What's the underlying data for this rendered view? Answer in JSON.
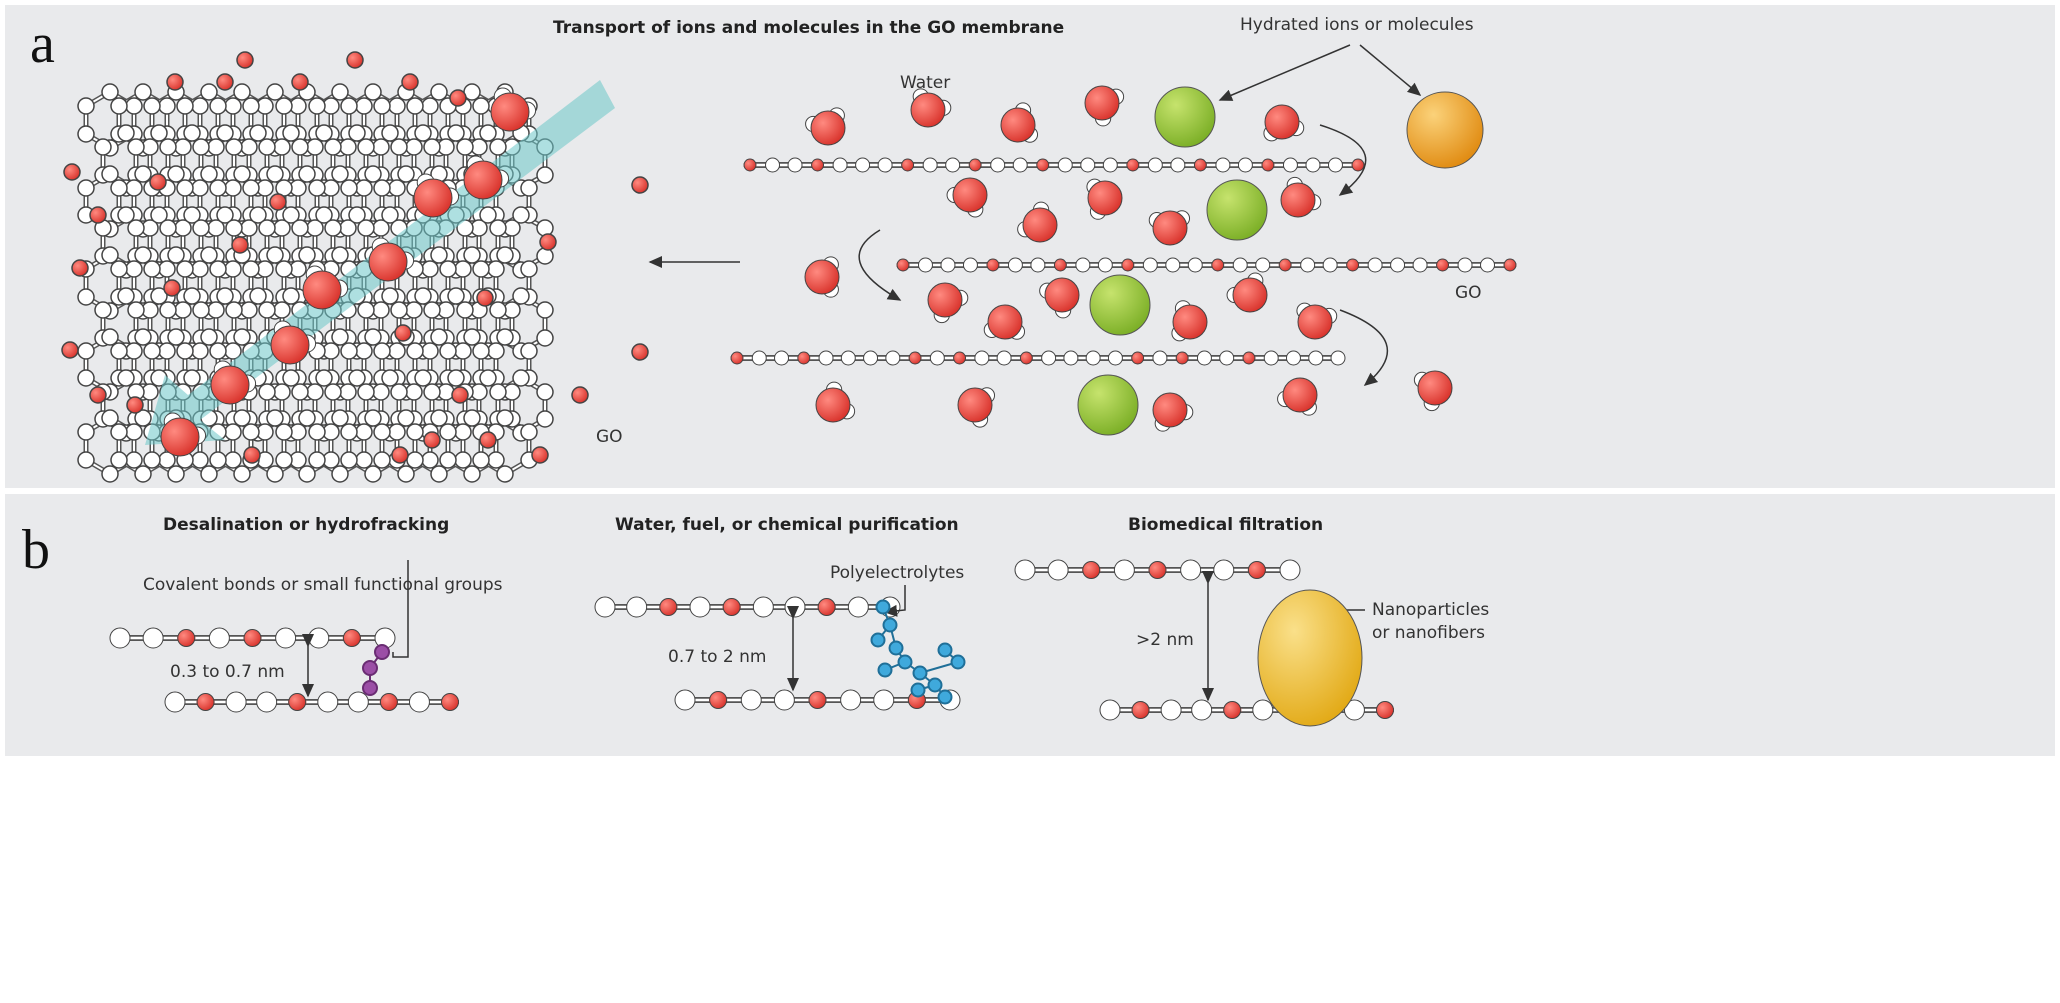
{
  "panel_a": {
    "letter": "a",
    "title": "Transport of ions and molecules in the GO membrane",
    "hydrated_label": "Hydrated ions or molecules",
    "water_label": "Water",
    "go_label_left": "GO",
    "go_label_right": "GO"
  },
  "panel_b": {
    "letter": "b",
    "desalination": {
      "title": "Desalination or hydrofracking",
      "annotation": "Covalent bonds or small functional groups",
      "spacing": "0.3 to 0.7 nm"
    },
    "purification": {
      "title": "Water, fuel, or chemical purification",
      "annotation": "Polyelectrolytes",
      "spacing": "0.7 to 2 nm"
    },
    "biomedical": {
      "title": "Biomedical filtration",
      "annotation_line1": "Nanoparticles",
      "annotation_line2": "or nanofibers",
      "spacing": ">2 nm"
    }
  },
  "colors": {
    "background_panel": "#e9eaec",
    "oxygen_red": "#e8473f",
    "carbon_white": "#ffffff",
    "ion_green": "#93c23a",
    "ion_orange": "#ee9a22",
    "nanoparticle_yellow": "#f0bf2a",
    "polyelectrolyte_blue": "#3fa9dc",
    "functional_purple": "#9b4ea6",
    "flow_arrow_teal": "#6cc7c8"
  }
}
